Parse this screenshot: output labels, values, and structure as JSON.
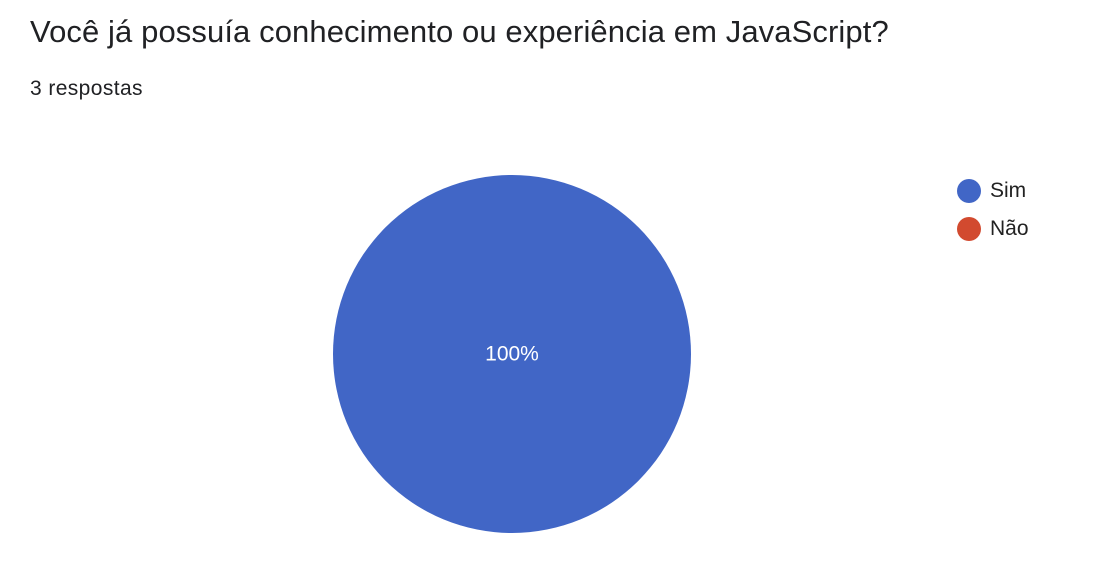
{
  "question": {
    "title": "Você já possuía conhecimento ou experiência em JavaScript?",
    "response_count": "3 respostas"
  },
  "chart_data": {
    "type": "pie",
    "title": "Você já possuía conhecimento ou experiência em JavaScript?",
    "subtitle": "3 respostas",
    "categories": [
      "Sim",
      "Não"
    ],
    "values": [
      100,
      0
    ],
    "colors": [
      "#4166c6",
      "#d24a2f"
    ],
    "data_labels": [
      "100%",
      ""
    ],
    "label_color": "#ffffff",
    "legend_position": "right"
  },
  "legend": {
    "items": [
      {
        "label": "Sim",
        "color": "#4166c6"
      },
      {
        "label": "Não",
        "color": "#d24a2f"
      }
    ]
  }
}
